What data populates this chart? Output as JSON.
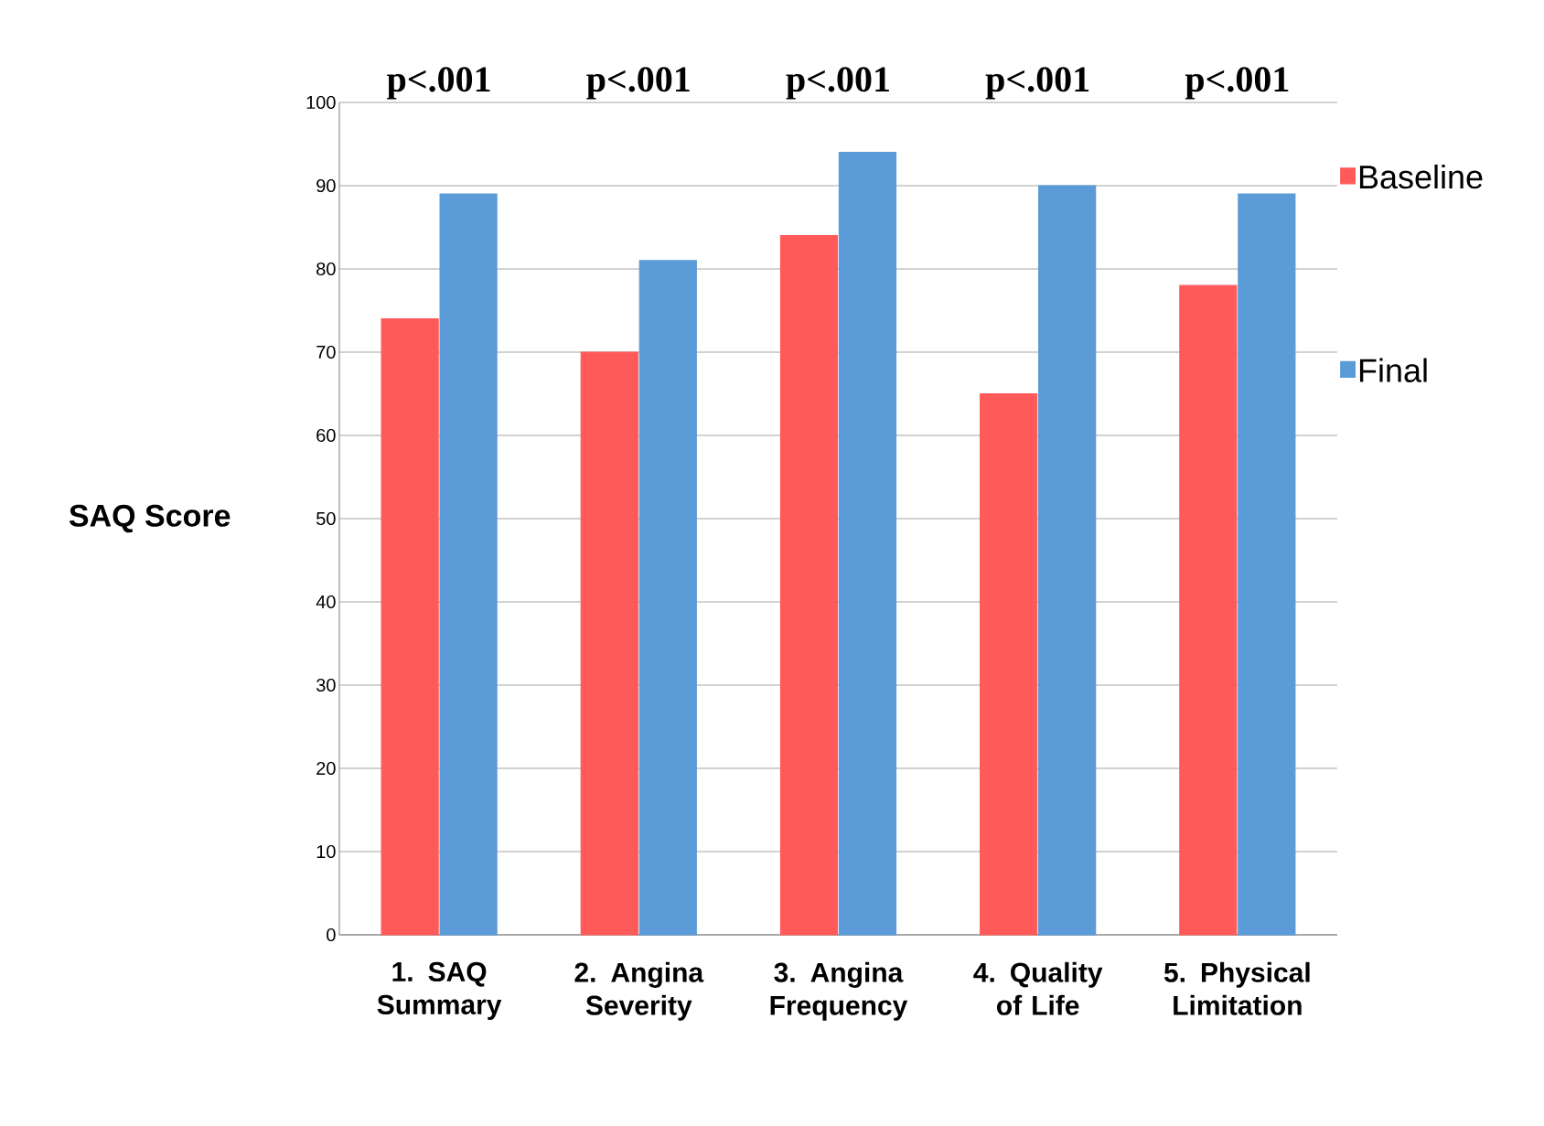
{
  "chart_data": {
    "type": "bar",
    "ylabel": "SAQ Score",
    "categories": [
      "1. SAQ Summary",
      "2. Angina Severity",
      "3.  Angina Frequency",
      "4.  Quality of Life",
      "5. Physical Limitation"
    ],
    "series": [
      {
        "name": "Baseline",
        "color": "#ff5a5a",
        "values": [
          74,
          70,
          84,
          65,
          78
        ]
      },
      {
        "name": "Final",
        "color": "#5a9bd8",
        "values": [
          89,
          81,
          94,
          90,
          89
        ]
      }
    ],
    "ylim": [
      0,
      100
    ],
    "yticks": [
      0,
      10,
      20,
      30,
      40,
      50,
      60,
      70,
      80,
      90,
      100
    ],
    "grid": "y",
    "legend": "right",
    "annotations": [
      "p<.001",
      "p<.001",
      "p<.001",
      "p<.001",
      "p<.001"
    ]
  }
}
